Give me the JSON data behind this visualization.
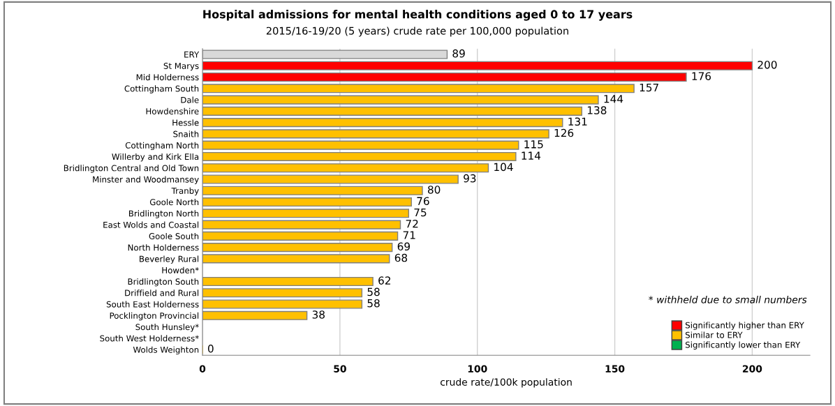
{
  "chart_data": {
    "type": "bar",
    "orientation": "horizontal",
    "title": "Hospital admissions for mental health conditions aged 0 to 17 years",
    "subtitle": "2015/16-19/20 (5 years) crude rate per 100,000 population",
    "xlabel": "crude rate/100k population",
    "categories": [
      "ERY",
      "St Marys",
      "Mid Holderness",
      "Cottingham South",
      "Dale",
      "Howdenshire",
      "Hessle",
      "Snaith",
      "Cottingham North",
      "Willerby and Kirk Ella",
      "Bridlington Central and Old Town",
      "Minster and Woodmansey",
      "Tranby",
      "Goole North",
      "Bridlington North",
      "East Wolds and Coastal",
      "Goole South",
      "North Holderness",
      "Beverley Rural",
      "Howden*",
      "Bridlington South",
      "Driffield and Rural",
      "South East Holderness",
      "Pocklington Provincial",
      "South Hunsley*",
      "South West Holderness*",
      "Wolds Weighton"
    ],
    "series": [
      {
        "color": "#d9d9d9",
        "values": [
          89,
          null,
          null,
          null,
          null,
          null,
          null,
          null,
          null,
          null,
          null,
          null,
          null,
          null,
          null,
          null,
          null,
          null,
          null,
          null,
          null,
          null,
          null,
          null,
          null,
          null,
          null
        ]
      },
      {
        "name": "Significantly higher than ERY",
        "color": "#ff0000",
        "values": [
          null,
          200,
          176,
          null,
          null,
          null,
          null,
          null,
          null,
          null,
          null,
          null,
          null,
          null,
          null,
          null,
          null,
          null,
          null,
          null,
          null,
          null,
          null,
          null,
          null,
          null,
          null
        ]
      },
      {
        "name": "Similar to ERY",
        "color": "#ffc000",
        "values": [
          null,
          null,
          null,
          157,
          144,
          138,
          131,
          126,
          115,
          114,
          104,
          93,
          80,
          76,
          75,
          72,
          71,
          69,
          68,
          null,
          62,
          58,
          58,
          38,
          null,
          null,
          0
        ]
      },
      {
        "name": "Significantly lower than ERY",
        "color": "#00b050",
        "values": [
          null,
          null,
          null,
          null,
          null,
          null,
          null,
          null,
          null,
          null,
          null,
          null,
          null,
          null,
          null,
          null,
          null,
          null,
          null,
          null,
          null,
          null,
          null,
          null,
          null,
          null,
          null
        ]
      }
    ],
    "xlim": [
      0,
      221
    ],
    "xticks": [
      0,
      50,
      100,
      150,
      200
    ],
    "grid": "x",
    "legend": "bottom right",
    "data_labels": true,
    "annotations": [
      "* withheld due to small numbers"
    ]
  }
}
